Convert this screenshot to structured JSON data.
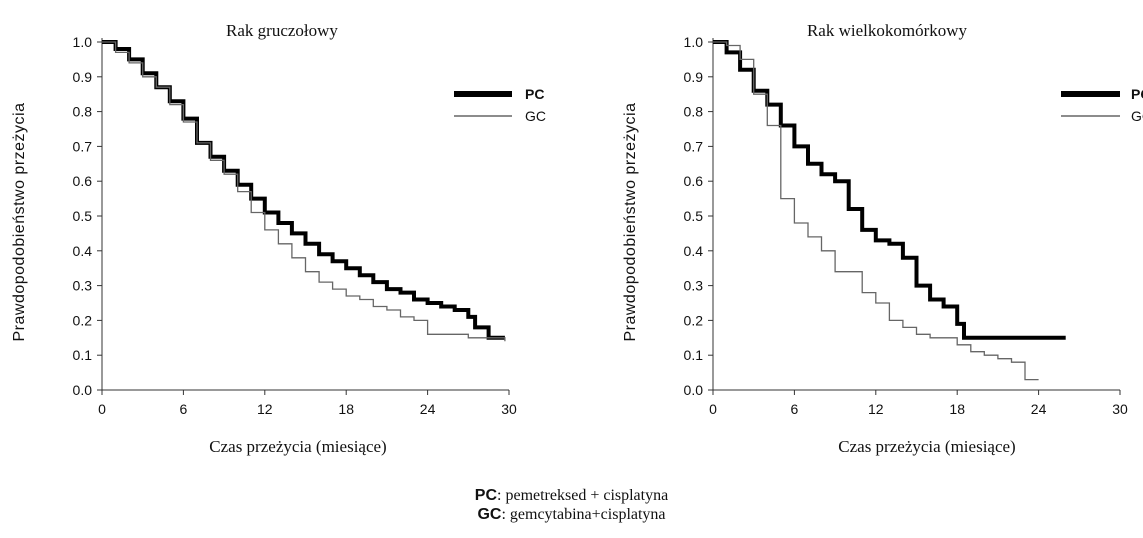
{
  "chart_data": [
    {
      "type": "line",
      "title": "Rak gruczołowy",
      "xlabel": "Czas przeżycia (miesiące)",
      "ylabel": "Prawdopodobieństwo przeżycia",
      "xlim": [
        0,
        30
      ],
      "ylim": [
        0.0,
        1.0
      ],
      "xticks": [
        "0",
        "6",
        "12",
        "18",
        "24",
        "30"
      ],
      "yticks": [
        "0.0",
        "0.1",
        "0.2",
        "0.3",
        "0.4",
        "0.5",
        "0.6",
        "0.7",
        "0.8",
        "0.9",
        "1.0"
      ],
      "grid": false,
      "legend_position": "top-right",
      "series": [
        {
          "name": "PC",
          "style": "thick",
          "color": "#000000",
          "points": [
            [
              0,
              1.0
            ],
            [
              1,
              0.98
            ],
            [
              2,
              0.95
            ],
            [
              3,
              0.91
            ],
            [
              4,
              0.87
            ],
            [
              5,
              0.83
            ],
            [
              6,
              0.78
            ],
            [
              7,
              0.71
            ],
            [
              8,
              0.67
            ],
            [
              9,
              0.63
            ],
            [
              10,
              0.59
            ],
            [
              11,
              0.55
            ],
            [
              12,
              0.51
            ],
            [
              13,
              0.48
            ],
            [
              14,
              0.45
            ],
            [
              15,
              0.42
            ],
            [
              16,
              0.39
            ],
            [
              17,
              0.37
            ],
            [
              18,
              0.35
            ],
            [
              19,
              0.33
            ],
            [
              20,
              0.31
            ],
            [
              21,
              0.29
            ],
            [
              22,
              0.28
            ],
            [
              23,
              0.26
            ],
            [
              24,
              0.25
            ],
            [
              25,
              0.24
            ],
            [
              26,
              0.23
            ],
            [
              27,
              0.21
            ],
            [
              27.5,
              0.18
            ],
            [
              28.5,
              0.15
            ],
            [
              29.7,
              0.15
            ]
          ]
        },
        {
          "name": "GC",
          "style": "thin",
          "color": "#666666",
          "points": [
            [
              0,
              1.0
            ],
            [
              1,
              0.97
            ],
            [
              2,
              0.94
            ],
            [
              3,
              0.9
            ],
            [
              4,
              0.87
            ],
            [
              5,
              0.82
            ],
            [
              6,
              0.77
            ],
            [
              7,
              0.71
            ],
            [
              8,
              0.66
            ],
            [
              9,
              0.62
            ],
            [
              10,
              0.57
            ],
            [
              11,
              0.51
            ],
            [
              12,
              0.46
            ],
            [
              13,
              0.42
            ],
            [
              14,
              0.38
            ],
            [
              15,
              0.34
            ],
            [
              16,
              0.31
            ],
            [
              17,
              0.29
            ],
            [
              18,
              0.27
            ],
            [
              19,
              0.26
            ],
            [
              20,
              0.24
            ],
            [
              21,
              0.23
            ],
            [
              22,
              0.21
            ],
            [
              23,
              0.2
            ],
            [
              24,
              0.16
            ],
            [
              26,
              0.16
            ],
            [
              27,
              0.15
            ],
            [
              29.7,
              0.14
            ]
          ]
        }
      ]
    },
    {
      "type": "line",
      "title": "Rak wielkokomórkowy",
      "xlabel": "Czas przeżycia (miesiące)",
      "ylabel": "Prawdopodobieństwo przeżycia",
      "xlim": [
        0,
        30
      ],
      "ylim": [
        0.0,
        1.0
      ],
      "xticks": [
        "0",
        "6",
        "12",
        "18",
        "24",
        "30"
      ],
      "yticks": [
        "0.0",
        "0.1",
        "0.2",
        "0.3",
        "0.4",
        "0.5",
        "0.6",
        "0.7",
        "0.8",
        "0.9",
        "1.0"
      ],
      "grid": false,
      "legend_position": "top-right",
      "series": [
        {
          "name": "PC",
          "style": "thick",
          "color": "#000000",
          "points": [
            [
              0,
              1.0
            ],
            [
              1,
              0.97
            ],
            [
              2,
              0.92
            ],
            [
              3,
              0.86
            ],
            [
              4,
              0.82
            ],
            [
              5,
              0.76
            ],
            [
              6,
              0.7
            ],
            [
              7,
              0.65
            ],
            [
              8,
              0.62
            ],
            [
              9,
              0.6
            ],
            [
              10,
              0.52
            ],
            [
              11,
              0.46
            ],
            [
              12,
              0.43
            ],
            [
              13,
              0.42
            ],
            [
              14,
              0.38
            ],
            [
              15,
              0.3
            ],
            [
              16,
              0.26
            ],
            [
              17,
              0.24
            ],
            [
              18,
              0.19
            ],
            [
              18.5,
              0.15
            ],
            [
              20,
              0.15
            ],
            [
              26,
              0.15
            ]
          ]
        },
        {
          "name": "GC",
          "style": "thin",
          "color": "#666666",
          "points": [
            [
              0,
              1.0
            ],
            [
              1,
              0.99
            ],
            [
              2,
              0.95
            ],
            [
              3,
              0.85
            ],
            [
              4,
              0.76
            ],
            [
              5,
              0.55
            ],
            [
              6,
              0.48
            ],
            [
              7,
              0.44
            ],
            [
              8,
              0.4
            ],
            [
              9,
              0.34
            ],
            [
              10,
              0.34
            ],
            [
              11,
              0.28
            ],
            [
              12,
              0.25
            ],
            [
              13,
              0.2
            ],
            [
              14,
              0.18
            ],
            [
              15,
              0.16
            ],
            [
              16,
              0.15
            ],
            [
              17,
              0.15
            ],
            [
              18,
              0.13
            ],
            [
              19,
              0.11
            ],
            [
              20,
              0.1
            ],
            [
              21,
              0.09
            ],
            [
              22,
              0.08
            ],
            [
              23,
              0.03
            ],
            [
              24,
              0.03
            ]
          ]
        }
      ]
    }
  ],
  "legend_note": {
    "pc_abbr": "PC",
    "pc_text": ": pemetreksed + cisplatyna",
    "gc_abbr": "GC",
    "gc_text": ": gemcytabina+cisplatyna"
  }
}
